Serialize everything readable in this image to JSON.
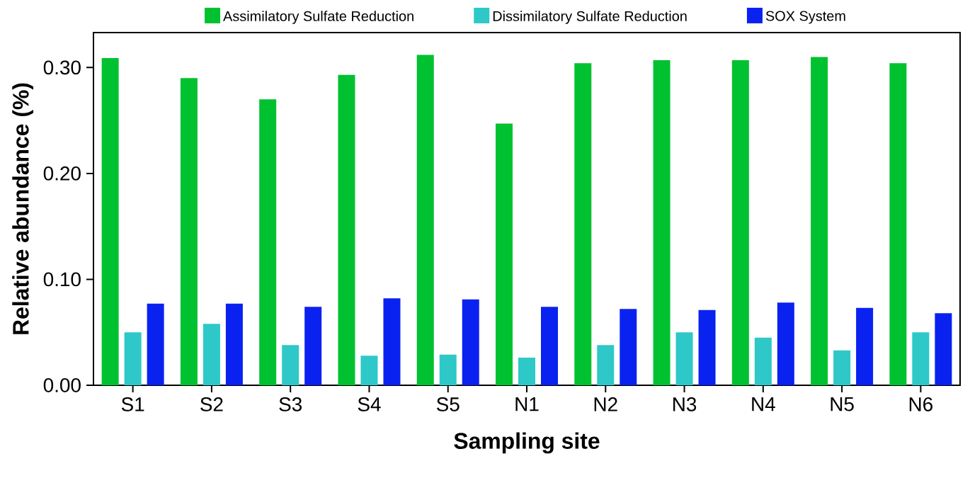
{
  "chart_data": {
    "type": "bar",
    "xlabel": "Sampling site",
    "ylabel": "Relative abundance (%)",
    "categories": [
      "S1",
      "S2",
      "S3",
      "S4",
      "S5",
      "N1",
      "N2",
      "N3",
      "N4",
      "N5",
      "N6"
    ],
    "series": [
      {
        "name": "Assimilatory Sulfate Reduction",
        "color": "#00c12f",
        "values": [
          0.309,
          0.29,
          0.27,
          0.293,
          0.312,
          0.247,
          0.304,
          0.307,
          0.307,
          0.31,
          0.304
        ]
      },
      {
        "name": "Dissimilatory Sulfate Reduction",
        "color": "#2ec8c8",
        "values": [
          0.05,
          0.058,
          0.038,
          0.028,
          0.029,
          0.026,
          0.038,
          0.05,
          0.045,
          0.033,
          0.05
        ]
      },
      {
        "name": "SOX System",
        "color": "#0a22f0",
        "values": [
          0.077,
          0.077,
          0.074,
          0.082,
          0.081,
          0.074,
          0.072,
          0.071,
          0.078,
          0.073,
          0.068
        ]
      }
    ],
    "ylim": [
      0,
      0.333
    ],
    "yticks": [
      {
        "value": 0,
        "label": "0.00"
      },
      {
        "value": 0.1,
        "label": "0.10"
      },
      {
        "value": 0.2,
        "label": "0.20"
      },
      {
        "value": 0.3,
        "label": "0.30"
      }
    ],
    "grid": false,
    "legend": "top"
  }
}
